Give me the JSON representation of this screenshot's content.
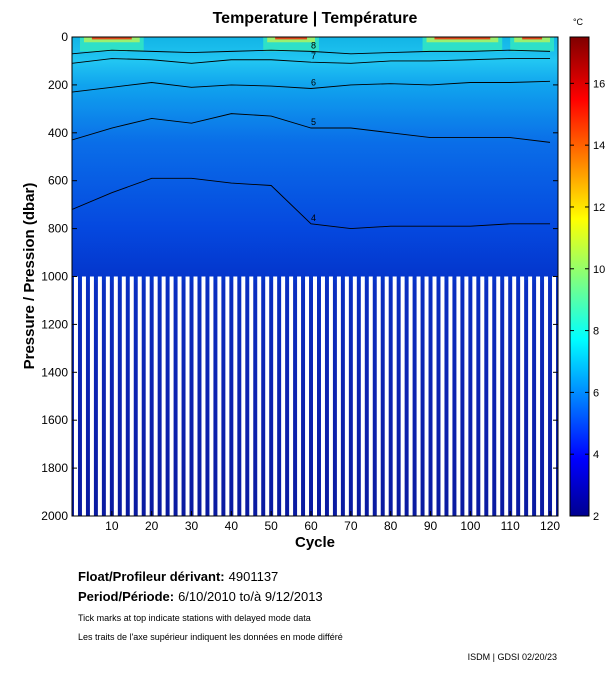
{
  "chart_data": {
    "type": "heatmap",
    "title": "Temperature | Température",
    "xlabel": "Cycle",
    "ylabel": "Pressure / Pression (dbar)",
    "xlim": [
      0,
      122
    ],
    "ylim": [
      2000,
      0
    ],
    "x_ticks": [
      10,
      20,
      30,
      40,
      50,
      60,
      70,
      80,
      90,
      100,
      110,
      120
    ],
    "y_ticks": [
      0,
      200,
      400,
      600,
      800,
      1000,
      1200,
      1400,
      1600,
      1800,
      2000
    ],
    "colorbar": {
      "unit": "°C",
      "range": [
        2,
        17.5
      ],
      "ticks": [
        2,
        4,
        6,
        8,
        10,
        12,
        14,
        16
      ]
    },
    "profile_depth_dbar": 1000,
    "deep_profile_depth_dbar": 2000,
    "contours": [
      {
        "label": "8",
        "level": 8,
        "depth": [
          70,
          55,
          60,
          65,
          60,
          55,
          60,
          70,
          65,
          60,
          60,
          55,
          60
        ]
      },
      {
        "label": "7",
        "level": 7,
        "depth": [
          110,
          90,
          95,
          110,
          95,
          95,
          105,
          110,
          100,
          100,
          95,
          90,
          90
        ]
      },
      {
        "label": "6",
        "level": 6,
        "depth": [
          230,
          210,
          190,
          210,
          200,
          205,
          215,
          200,
          195,
          200,
          190,
          190,
          185
        ]
      },
      {
        "label": "5",
        "level": 5,
        "depth": [
          430,
          380,
          340,
          360,
          320,
          330,
          380,
          380,
          400,
          420,
          420,
          420,
          440
        ]
      },
      {
        "label": "4",
        "level": 4,
        "depth": [
          720,
          650,
          590,
          590,
          610,
          620,
          780,
          800,
          790,
          790,
          790,
          780,
          780
        ]
      }
    ],
    "contour_x": [
      0,
      10,
      20,
      30,
      40,
      50,
      60,
      70,
      80,
      90,
      100,
      110,
      120
    ]
  },
  "metadata": {
    "float_label": "Float/Profileur dérivant:",
    "float_id": "4901137",
    "period_label": "Period/Période:",
    "period_value": "6/10/2010  to/à  9/12/2013",
    "note_en": "Tick marks at top indicate stations with delayed mode data",
    "note_fr": "Les traits de l'axe supérieur indiquent les données en mode différé",
    "footer": "ISDM | GDSI  02/20/23"
  }
}
